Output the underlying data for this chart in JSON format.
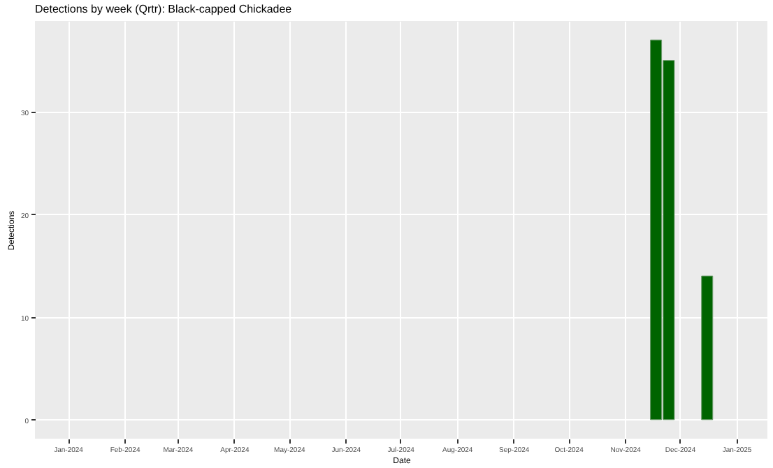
{
  "chart_data": {
    "type": "bar",
    "title": "Detections by week (Qrtr): Black-capped Chickadee",
    "xlabel": "Date",
    "ylabel": "Detections",
    "x": [
      "2024-11-18",
      "2024-11-25",
      "2024-12-16"
    ],
    "values": [
      37,
      35,
      14
    ],
    "color": "#006400",
    "xlim": [
      "2023-12-14",
      "2025-01-18"
    ],
    "xticks": [
      {
        "value": "2024-01-01",
        "label": "Jan-2024"
      },
      {
        "value": "2024-02-01",
        "label": "Feb-2024"
      },
      {
        "value": "2024-03-01",
        "label": "Mar-2024"
      },
      {
        "value": "2024-04-01",
        "label": "Apr-2024"
      },
      {
        "value": "2024-05-01",
        "label": "May-2024"
      },
      {
        "value": "2024-06-01",
        "label": "Jun-2024"
      },
      {
        "value": "2024-07-01",
        "label": "Jul-2024"
      },
      {
        "value": "2024-08-01",
        "label": "Aug-2024"
      },
      {
        "value": "2024-09-01",
        "label": "Sep-2024"
      },
      {
        "value": "2024-10-01",
        "label": "Oct-2024"
      },
      {
        "value": "2024-11-01",
        "label": "Nov-2024"
      },
      {
        "value": "2024-12-01",
        "label": "Dec-2024"
      },
      {
        "value": "2025-01-01",
        "label": "Jan-2025"
      }
    ],
    "ylim": [
      -1.85,
      38.85
    ],
    "yticks": [
      0,
      10,
      20,
      30
    ],
    "grid": true
  }
}
